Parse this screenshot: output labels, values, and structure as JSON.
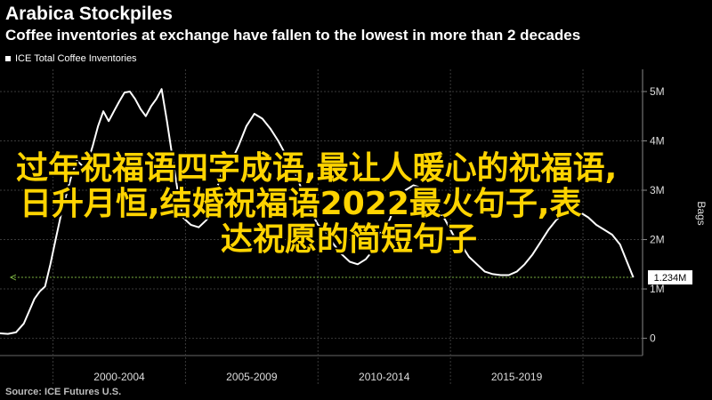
{
  "title": "Arabica Stockpiles",
  "subtitle": "Coffee inventories at exchange have fallen to the lowest in more than 2 decades",
  "source": "Source: ICE Futures U.S.",
  "overlay": {
    "line1": "过年祝福语四字成语,最让人暖心的祝福语,",
    "line2": "日升月恒,结婚祝福语2022最火句子,表",
    "line3": "达祝愿的简短句子"
  },
  "colors": {
    "background": "#000000",
    "line": "#ffffff",
    "grid": "#3a3a3a",
    "reference": "#7cb342",
    "overlay_text": "#ffd400"
  },
  "chart_data": {
    "type": "line",
    "legend": [
      "ICE Total Coffee Inventories"
    ],
    "y_axis_label": "Bags",
    "y_ticks": [
      {
        "value": 0,
        "label": "0"
      },
      {
        "value": 1,
        "label": "1M"
      },
      {
        "value": 2,
        "label": "2M"
      },
      {
        "value": 3,
        "label": "3M"
      },
      {
        "value": 4,
        "label": "4M"
      },
      {
        "value": 5,
        "label": "5M"
      }
    ],
    "ylim": [
      -0.35,
      5.45
    ],
    "xlim": [
      1998.0,
      2022.25
    ],
    "x_categories": [
      {
        "label": "2000-2004",
        "start": 2000,
        "end": 2005
      },
      {
        "label": "2005-2009",
        "start": 2005,
        "end": 2010
      },
      {
        "label": "2010-2014",
        "start": 2010,
        "end": 2015
      },
      {
        "label": "2015-2019",
        "start": 2015,
        "end": 2020
      }
    ],
    "last_value_label": "1.234M",
    "last_value": 1.234,
    "reference_line": {
      "value": 1.234,
      "from_x": 1998.4,
      "to_x": 2021.9
    },
    "series": [
      {
        "name": "ICE Total Coffee Inventories",
        "x": [
          1998.0,
          1998.3,
          1998.6,
          1998.9,
          1999.1,
          1999.3,
          1999.5,
          1999.7,
          1999.9,
          2000.1,
          2000.3,
          2000.5,
          2000.7,
          2000.9,
          2001.1,
          2001.3,
          2001.5,
          2001.7,
          2001.9,
          2002.1,
          2002.3,
          2002.5,
          2002.7,
          2002.9,
          2003.1,
          2003.3,
          2003.5,
          2003.7,
          2003.9,
          2004.1,
          2004.3,
          2004.5,
          2004.7,
          2004.9,
          2005.2,
          2005.5,
          2005.8,
          2006.1,
          2006.4,
          2006.7,
          2007.0,
          2007.3,
          2007.6,
          2007.9,
          2008.2,
          2008.5,
          2008.8,
          2009.1,
          2009.4,
          2009.7,
          2010.0,
          2010.3,
          2010.6,
          2010.9,
          2011.2,
          2011.5,
          2011.8,
          2012.1,
          2012.4,
          2012.7,
          2013.0,
          2013.3,
          2013.6,
          2013.9,
          2014.2,
          2014.5,
          2014.8,
          2015.1,
          2015.4,
          2015.7,
          2016.0,
          2016.3,
          2016.6,
          2016.9,
          2017.2,
          2017.5,
          2017.8,
          2018.1,
          2018.4,
          2018.7,
          2019.0,
          2019.3,
          2019.6,
          2019.9,
          2020.2,
          2020.5,
          2020.8,
          2021.1,
          2021.4,
          2021.7,
          2021.9
        ],
        "values": [
          0.1,
          0.09,
          0.12,
          0.3,
          0.55,
          0.8,
          0.95,
          1.05,
          1.5,
          2.0,
          2.5,
          2.9,
          3.3,
          3.6,
          3.5,
          3.55,
          3.9,
          4.3,
          4.6,
          4.4,
          4.6,
          4.8,
          4.98,
          5.0,
          4.85,
          4.65,
          4.5,
          4.7,
          4.85,
          5.05,
          4.4,
          3.7,
          3.0,
          2.45,
          2.3,
          2.25,
          2.4,
          2.9,
          3.4,
          3.55,
          3.9,
          4.3,
          4.55,
          4.45,
          4.25,
          4.0,
          3.7,
          3.4,
          3.0,
          2.6,
          2.3,
          2.15,
          1.9,
          1.7,
          1.55,
          1.5,
          1.6,
          1.8,
          2.2,
          2.4,
          2.8,
          3.0,
          3.1,
          3.05,
          2.8,
          2.6,
          2.4,
          2.1,
          1.9,
          1.65,
          1.5,
          1.35,
          1.3,
          1.28,
          1.28,
          1.35,
          1.5,
          1.7,
          1.95,
          2.2,
          2.4,
          2.55,
          2.6,
          2.55,
          2.45,
          2.3,
          2.2,
          2.1,
          1.9,
          1.5,
          1.234
        ]
      }
    ]
  }
}
